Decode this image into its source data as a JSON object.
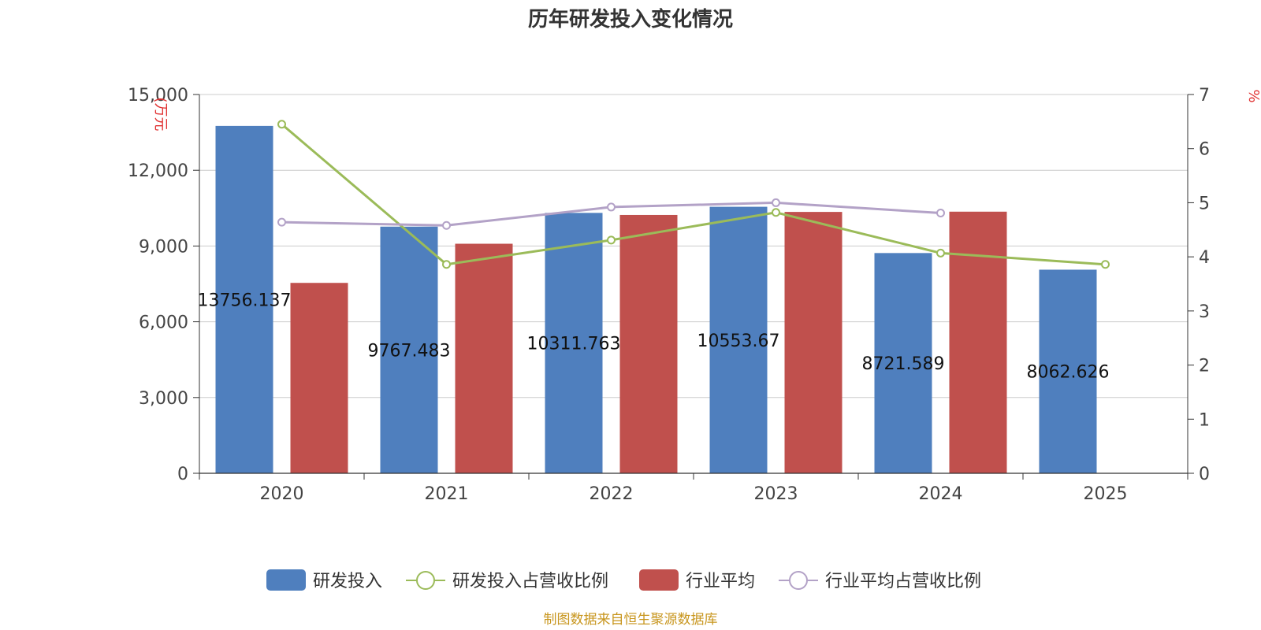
{
  "chart_data": {
    "type": "bar",
    "title": "历年研发投入变化情况",
    "categories": [
      "2020",
      "2021",
      "2022",
      "2023",
      "2024",
      "2025"
    ],
    "y_left": {
      "unit": "(万元",
      "ylim": [
        0,
        15000
      ],
      "ticks": [
        "0",
        "3,000",
        "6,000",
        "9,000",
        "12,000",
        "15,000"
      ],
      "tick_values": [
        0,
        3000,
        6000,
        9000,
        12000,
        15000
      ]
    },
    "y_right": {
      "unit": "%",
      "ylim": [
        0,
        7
      ],
      "ticks": [
        "0",
        "1",
        "2",
        "3",
        "4",
        "5",
        "6",
        "7"
      ],
      "tick_values": [
        0,
        1,
        2,
        3,
        4,
        5,
        6,
        7
      ]
    },
    "series": [
      {
        "name": "研发投入",
        "kind": "bar",
        "axis": "left",
        "color": "#4f7fbe",
        "values": [
          13756.137,
          9767.483,
          10311.763,
          10553.67,
          8721.589,
          8062.626
        ],
        "labels": [
          "13756.137",
          "9767.483",
          "10311.763",
          "10553.67",
          "8721.589",
          "8062.626"
        ]
      },
      {
        "name": "研发投入占营收比例",
        "kind": "line",
        "axis": "right",
        "color": "#9bbb59",
        "values": [
          6.45,
          3.86,
          4.31,
          4.82,
          4.07,
          3.86
        ]
      },
      {
        "name": "行业平均",
        "kind": "bar",
        "axis": "left",
        "color": "#c0504d",
        "values": [
          7540,
          9090,
          10230,
          10350,
          10360,
          null
        ]
      },
      {
        "name": "行业平均占营收比例",
        "kind": "line",
        "axis": "right",
        "color": "#b3a2c7",
        "values": [
          4.64,
          4.58,
          4.92,
          5.0,
          4.81,
          null
        ]
      }
    ],
    "source": "制图数据来自恒生聚源数据库"
  }
}
